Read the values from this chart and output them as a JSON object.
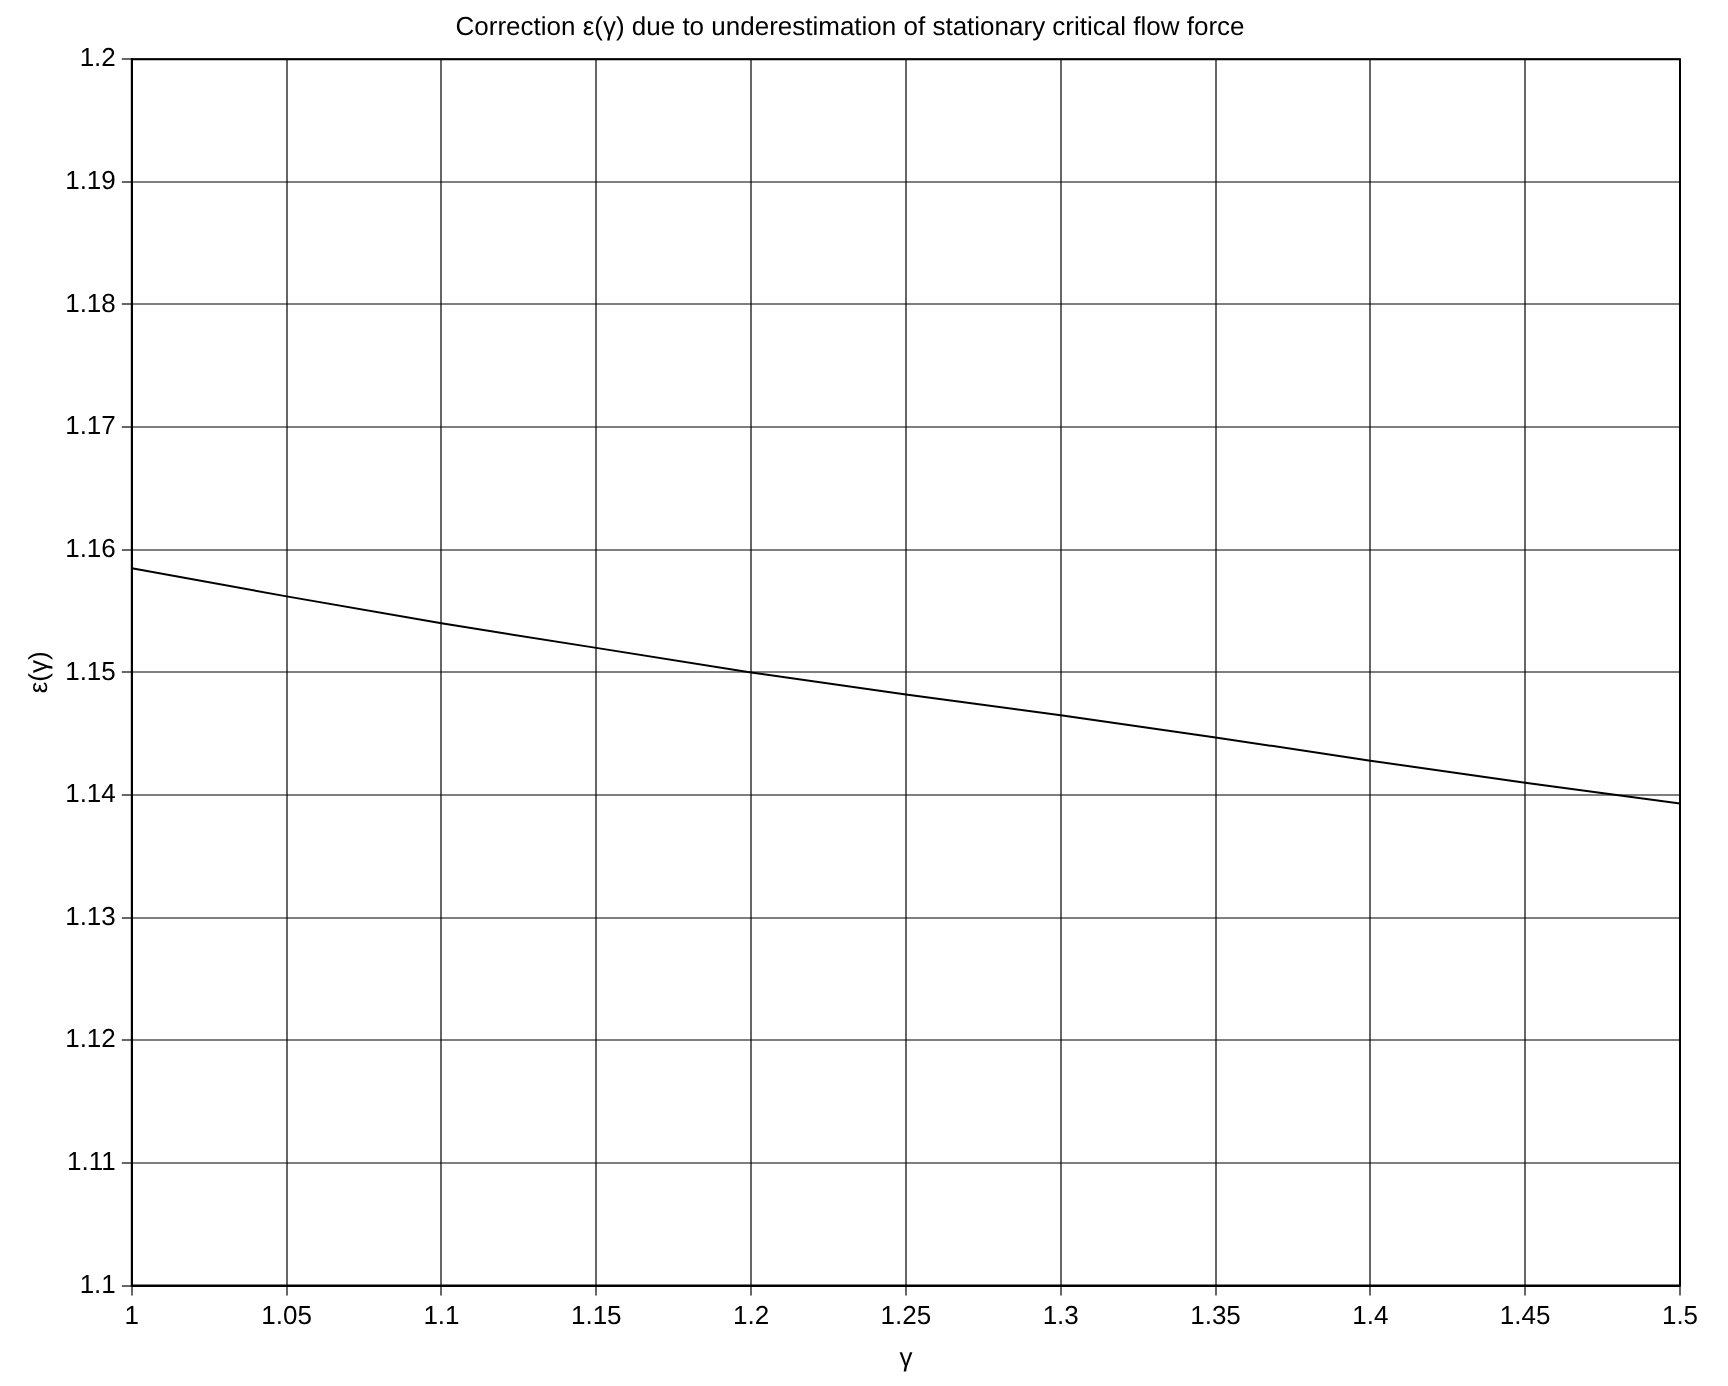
{
  "chart_data": {
    "type": "line",
    "title": "Correction ε(γ) due to underestimation of stationary critical flow force",
    "xlabel": "γ",
    "ylabel": "ε(γ)",
    "x": [
      1,
      1.05,
      1.1,
      1.15,
      1.2,
      1.25,
      1.3,
      1.35,
      1.4,
      1.45,
      1.5
    ],
    "series": [
      {
        "color": "#000000",
        "values": [
          1.1585,
          1.1562,
          1.154,
          1.152,
          1.15,
          1.1482,
          1.1465,
          1.1447,
          1.1428,
          1.141,
          1.1393
        ]
      }
    ],
    "xlim": [
      1,
      1.5
    ],
    "xticks": [
      1,
      1.05,
      1.1,
      1.15,
      1.2,
      1.25,
      1.3,
      1.35,
      1.4,
      1.45,
      1.5
    ],
    "ylim": [
      1.1,
      1.2
    ],
    "yticks": [
      1.1,
      1.11,
      1.12,
      1.13,
      1.14,
      1.15,
      1.16,
      1.17,
      1.18,
      1.19,
      1.2
    ],
    "grid": true,
    "legend": false,
    "marker": "none",
    "line_style": "solid"
  }
}
